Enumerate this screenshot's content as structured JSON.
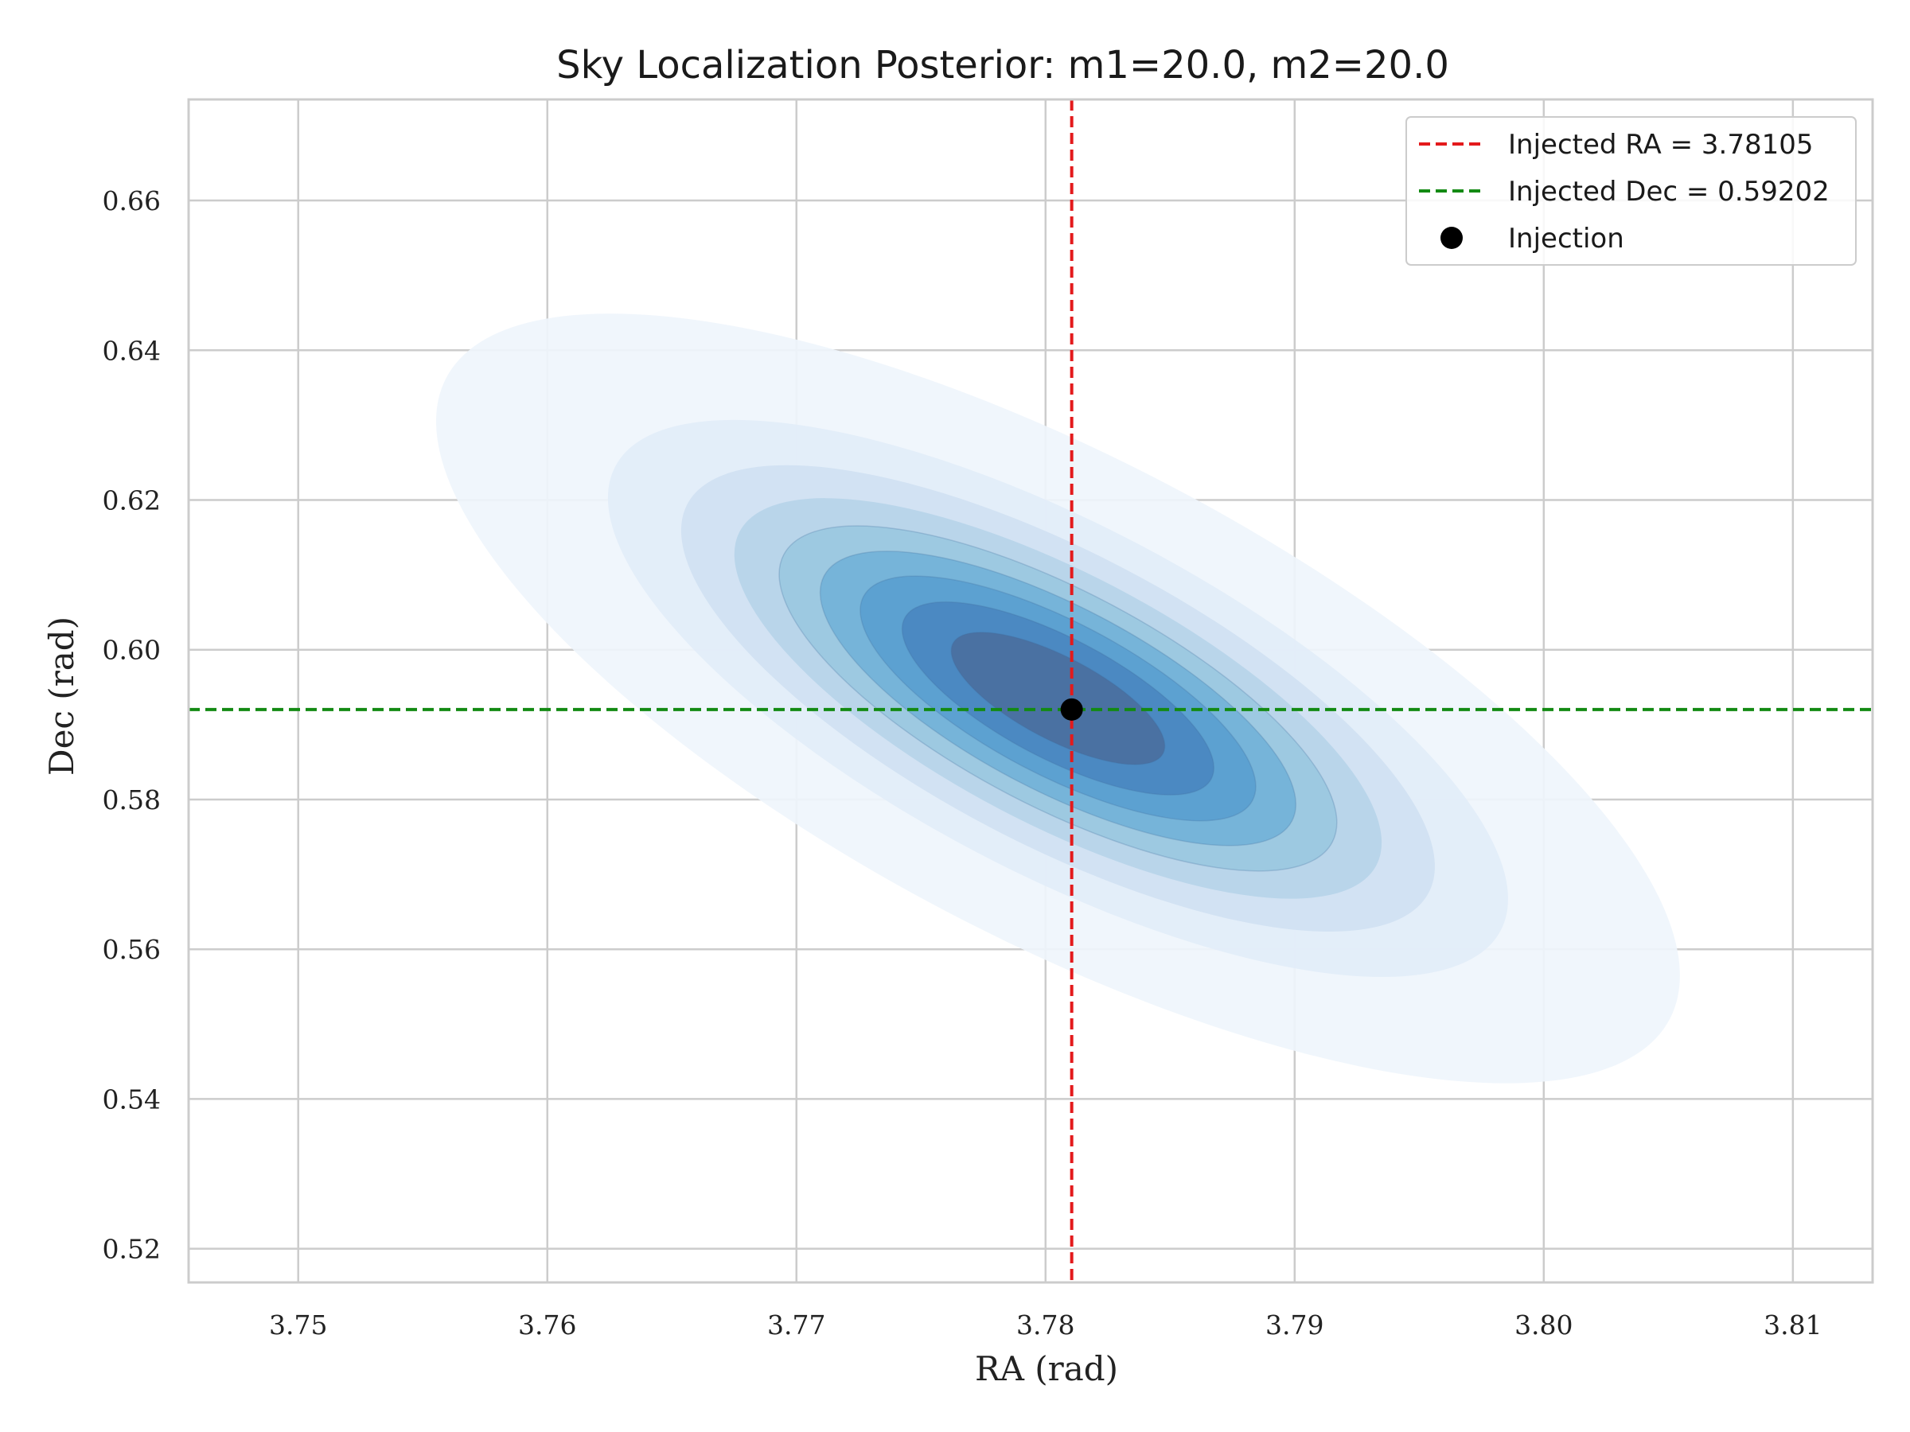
{
  "chart_data": {
    "type": "kde-contour",
    "title": "Sky Localization Posterior: m1=20.0, m2=20.0",
    "xlabel": "RA (rad)",
    "ylabel": "Dec (rad)",
    "xlim": [
      3.7456,
      3.8132
    ],
    "ylim": [
      0.5155,
      0.6735
    ],
    "xticks": [
      3.75,
      3.76,
      3.77,
      3.78,
      3.79,
      3.8,
      3.81
    ],
    "xtick_labels": [
      "3.75",
      "3.76",
      "3.77",
      "3.78",
      "3.79",
      "3.80",
      "3.81"
    ],
    "yticks": [
      0.52,
      0.54,
      0.56,
      0.58,
      0.6,
      0.62,
      0.64,
      0.66
    ],
    "ytick_labels": [
      "0.52",
      "0.54",
      "0.56",
      "0.58",
      "0.60",
      "0.62",
      "0.64",
      "0.66"
    ],
    "grid": true,
    "legend_position": "top-right",
    "colormap": "Blues",
    "density": {
      "center": [
        3.7805,
        0.5935
      ],
      "sigma_ra": 0.0085,
      "sigma_dec": 0.0175,
      "correlation": -0.72,
      "levels": 9
    },
    "injection": {
      "ra": 3.78105,
      "dec": 0.59202,
      "label": "Injection",
      "color": "#000000"
    },
    "lines": [
      {
        "orientation": "vertical",
        "value": 3.78105,
        "label": "Injected RA = 3.78105",
        "color": "#e31a1c",
        "style": "dashed"
      },
      {
        "orientation": "horizontal",
        "value": 0.59202,
        "label": "Injected Dec = 0.59202",
        "color": "#138a13",
        "style": "dashed"
      }
    ]
  }
}
